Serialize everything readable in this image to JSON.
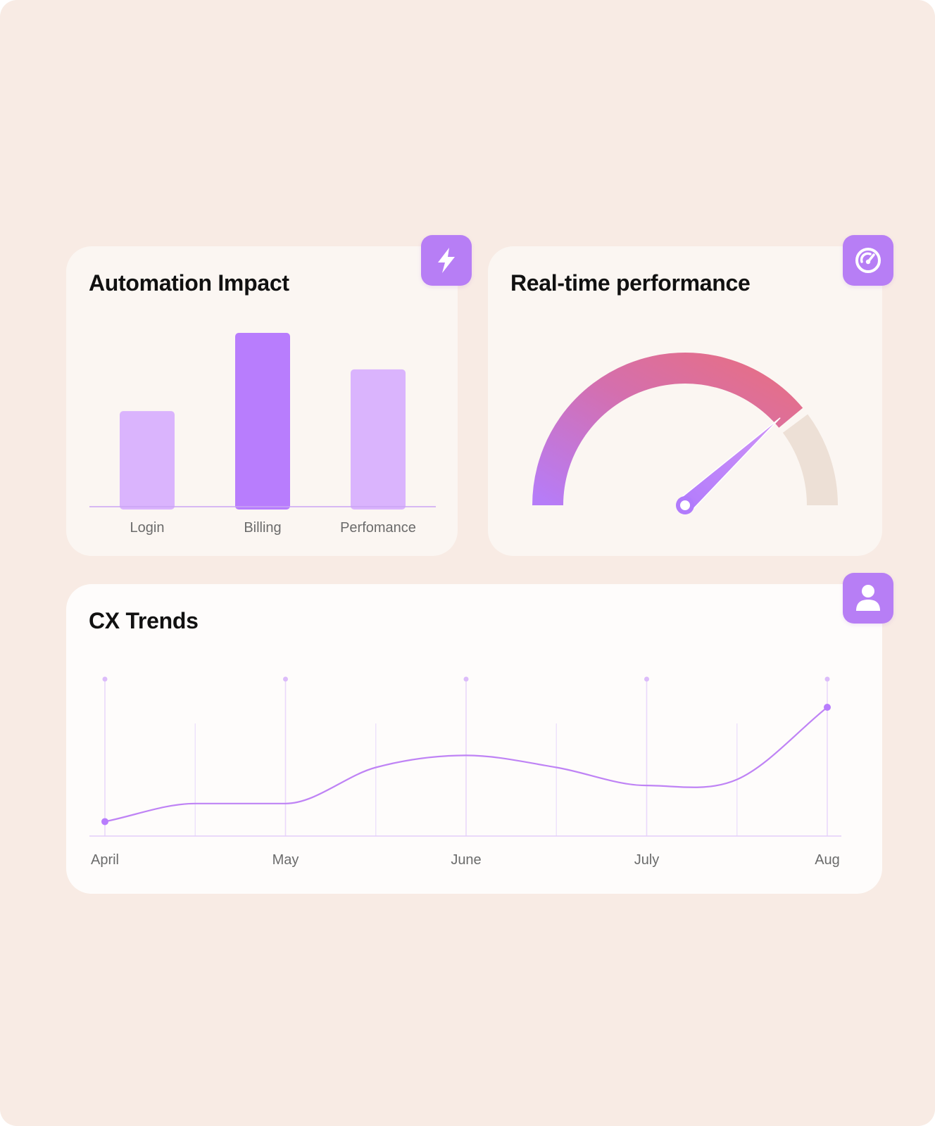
{
  "cards": {
    "automation": {
      "title": "Automation Impact",
      "icon": "lightning-bolt-icon"
    },
    "performance": {
      "title": "Real-time performance",
      "icon": "speedometer-icon"
    },
    "trends": {
      "title": "CX Trends",
      "icon": "user-icon"
    }
  },
  "colors": {
    "background": "#f8ebe4",
    "card": "#fbf6f2",
    "accent": "#b77ef5",
    "bar_light": "#dab4fd",
    "bar_dark": "#b87dfd",
    "gauge_start": "#b67cf8",
    "gauge_end": "#e36e88",
    "gauge_track": "#ede0d6",
    "line": "#bf83f5",
    "label": "#6b6b6b"
  },
  "chart_data": [
    {
      "type": "bar",
      "title": "Automation Impact",
      "categories": [
        "Login",
        "Billing",
        "Perfomance"
      ],
      "values": [
        55,
        100,
        79
      ],
      "ylim": [
        0,
        100
      ],
      "highlight_index": 1,
      "grid": false
    },
    {
      "type": "gauge",
      "title": "Real-time performance",
      "value": 78,
      "range": [
        0,
        100
      ]
    },
    {
      "type": "line",
      "title": "CX Trends",
      "categories": [
        "April",
        "May",
        "June",
        "July",
        "Aug"
      ],
      "x": [
        0,
        0.5,
        1,
        1.5,
        2,
        2.5,
        3,
        3.5,
        4
      ],
      "values": [
        5,
        20,
        20,
        50,
        60,
        50,
        35,
        40,
        100
      ],
      "ylim": [
        0,
        100
      ],
      "grid": true
    }
  ]
}
